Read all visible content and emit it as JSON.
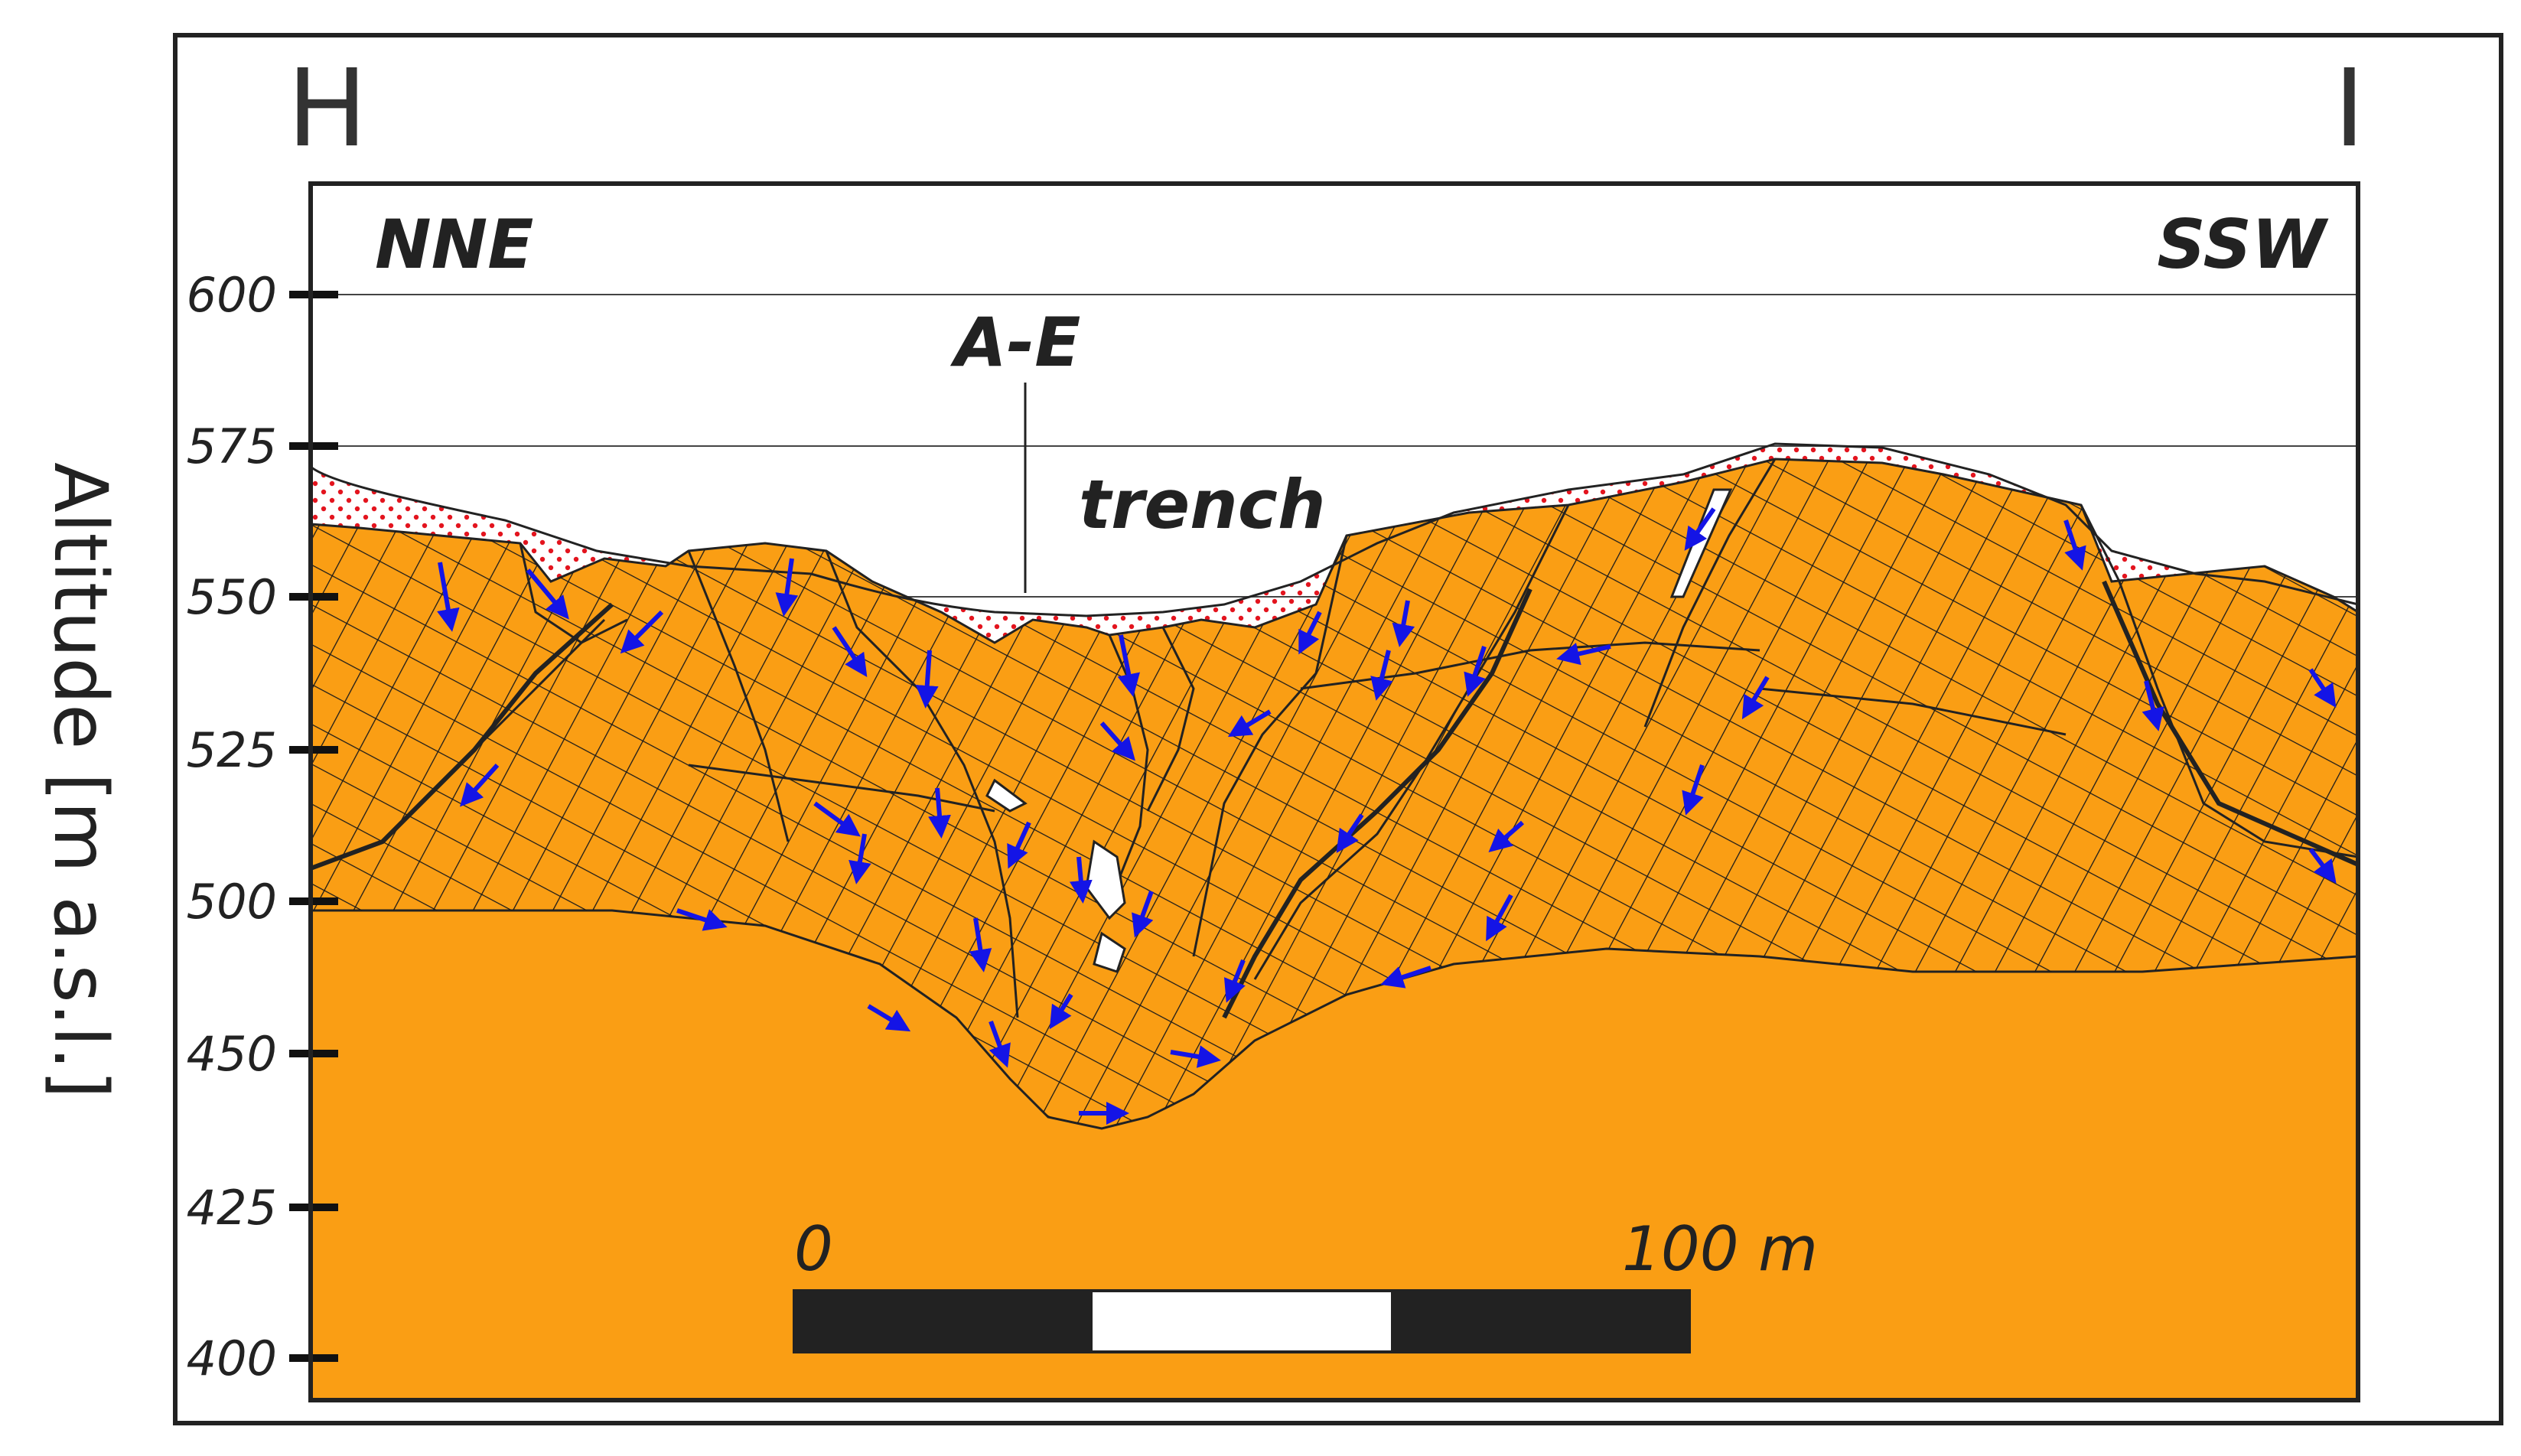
{
  "section": {
    "start_label": "H",
    "end_label": "I",
    "left_direction": "NNE",
    "right_direction": "SSW"
  },
  "axis": {
    "label": "Altitude [m a.s.l.]",
    "ticks": [
      "600",
      "575",
      "550",
      "525",
      "500",
      "450",
      "425",
      "400"
    ]
  },
  "annotations": {
    "borehole_label": "A-E",
    "trench_label": "trench"
  },
  "scale_bar": {
    "start_label": "0",
    "end_label": "100 m"
  },
  "colors": {
    "rock_fill": "#FA9E14",
    "hatch": "#1a1a1a",
    "arrow": "#1414E6",
    "cover_dots": "#E3141E",
    "frame": "#222222"
  },
  "icons": {
    "movement": "arrow-icon"
  }
}
